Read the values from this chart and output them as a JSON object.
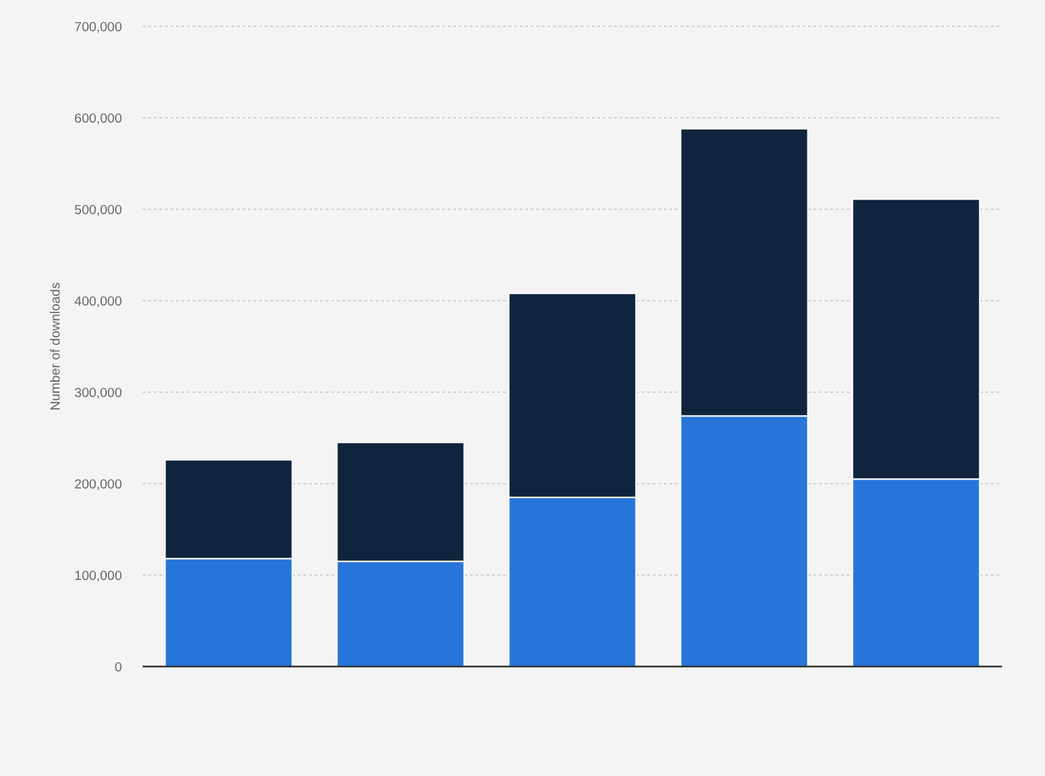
{
  "chart_data": {
    "type": "bar",
    "stacked": true,
    "ylabel": "Number of downloads",
    "categories": [
      null,
      null,
      null,
      null,
      null
    ],
    "series": [
      {
        "color": "#2775da",
        "values": [
          118000,
          115000,
          185000,
          274000,
          205000
        ]
      },
      {
        "color": "#10253d",
        "values": [
          108000,
          130000,
          223000,
          314000,
          306000
        ]
      }
    ],
    "ylim": [
      0,
      700000
    ],
    "yticks": [
      {
        "value": 0,
        "label": "0"
      },
      {
        "value": 100000,
        "label": "100,000"
      },
      {
        "value": 200000,
        "label": "200,000"
      },
      {
        "value": 300000,
        "label": "300,000"
      },
      {
        "value": 400000,
        "label": "400,000"
      },
      {
        "value": 500000,
        "label": "500,000"
      },
      {
        "value": 600000,
        "label": "600,000"
      },
      {
        "value": 700000,
        "label": "700,000"
      }
    ],
    "grid": "y"
  }
}
